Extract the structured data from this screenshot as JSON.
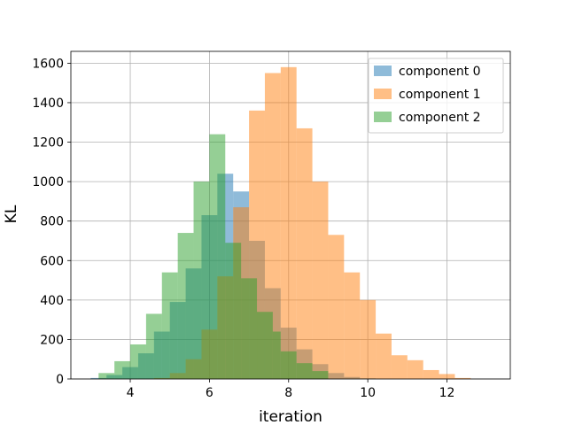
{
  "chart_data": {
    "type": "bar",
    "subtype": "overlapping-histogram",
    "title": "",
    "xlabel": "iteration",
    "ylabel": "KL",
    "xlim": [
      2.5,
      13.6
    ],
    "ylim": [
      0,
      1600
    ],
    "xticks": [
      4,
      6,
      8,
      10,
      12
    ],
    "yticks": [
      0,
      200,
      400,
      600,
      800,
      1000,
      1200,
      1400,
      1600
    ],
    "grid": true,
    "legend_position": "top-right",
    "bar_alpha": 0.5,
    "series": [
      {
        "name": "component 0",
        "color": "#1f77b4",
        "bin_edges": [
          3.0,
          3.4,
          3.8,
          4.2,
          4.6,
          5.0,
          5.4,
          5.8,
          6.2,
          6.6,
          7.0,
          7.4,
          7.8,
          8.2,
          8.6,
          9.0,
          9.4,
          9.8,
          10.2
        ],
        "counts": [
          5,
          20,
          60,
          130,
          240,
          390,
          560,
          830,
          1040,
          950,
          700,
          460,
          260,
          150,
          75,
          30,
          10,
          3
        ]
      },
      {
        "name": "component 1",
        "color": "#ff7f0e",
        "bin_edges": [
          4.6,
          5.0,
          5.4,
          5.8,
          6.2,
          6.6,
          7.0,
          7.4,
          7.8,
          8.2,
          8.6,
          9.0,
          9.4,
          9.8,
          10.2,
          10.6,
          11.0,
          11.4,
          11.8,
          12.2,
          12.6
        ],
        "counts": [
          5,
          30,
          100,
          250,
          520,
          870,
          1360,
          1550,
          1580,
          1270,
          1000,
          730,
          540,
          400,
          230,
          120,
          95,
          45,
          25,
          5
        ]
      },
      {
        "name": "component 2",
        "color": "#2ca02c",
        "bin_edges": [
          3.2,
          3.6,
          4.0,
          4.4,
          4.8,
          5.2,
          5.6,
          6.0,
          6.4,
          6.8,
          7.2,
          7.6,
          7.8,
          8.2,
          8.6,
          9.0
        ],
        "counts": [
          30,
          90,
          175,
          330,
          540,
          740,
          1000,
          1240,
          690,
          510,
          340,
          240,
          140,
          80,
          40
        ]
      }
    ]
  }
}
